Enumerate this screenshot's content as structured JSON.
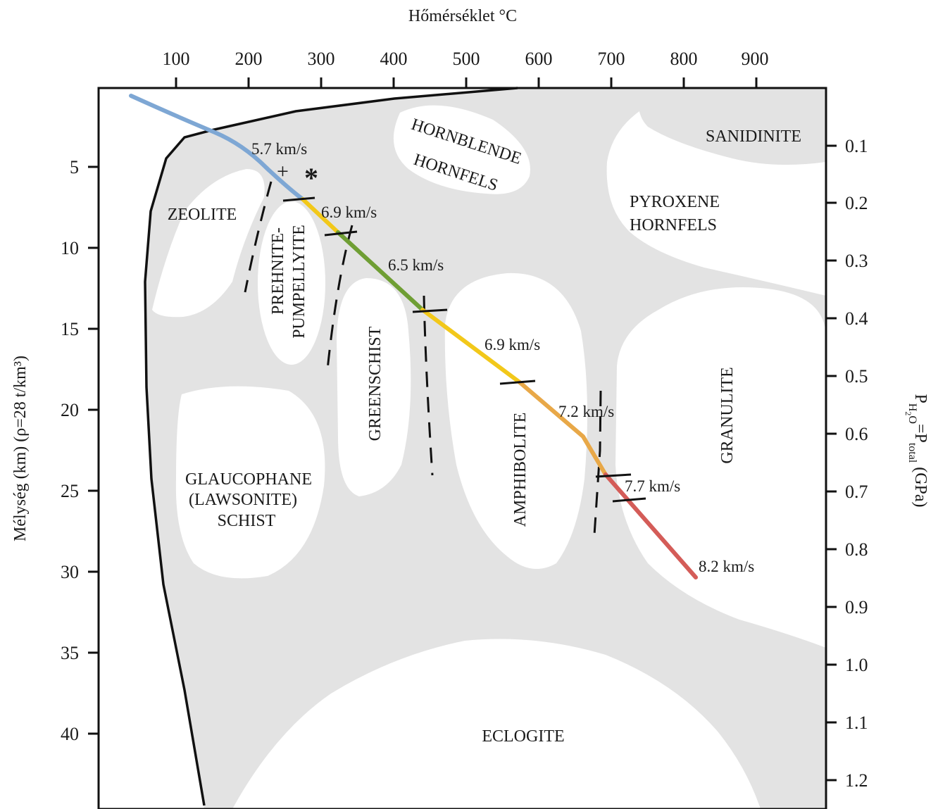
{
  "axes": {
    "top_title": "Hőmérséklet °C",
    "left_title": "Mélység (km) (ρ=28 t/km³)",
    "right_title": {
      "main": "P",
      "sub1": "H",
      "sub2": "2",
      "sub3": "O",
      "eq": "=P",
      "sub4": "total",
      "unit": "(GPa)"
    },
    "temperature_ticks": [
      "100",
      "200",
      "300",
      "400",
      "500",
      "600",
      "700",
      "800",
      "900"
    ],
    "depth_ticks": [
      "5",
      "10",
      "15",
      "20",
      "25",
      "30",
      "35",
      "40"
    ],
    "pressure_ticks": [
      "0.1",
      "0.2",
      "0.3",
      "0.4",
      "0.5",
      "0.6",
      "0.7",
      "0.8",
      "0.9",
      "1.0",
      "1.1",
      "1.2"
    ]
  },
  "facies": {
    "sanidinite": "SANIDINITE",
    "hornblende_1": "HORNBLENDE",
    "hornblende_2": "HORNFELS",
    "zeolite": "ZEOLITE",
    "pyroxene_1": "PYROXENE",
    "pyroxene_2": "HORNFELS",
    "prehnite_1": "PREHNITE-",
    "prehnite_2": "PUMPELLYITE",
    "greenschist": "GREENSCHIST",
    "amphibolite": "AMPHIBOLITE",
    "granulite": "GRANULITE",
    "glauco_1": "GLAUCOPHANE",
    "glauco_2": "(LAWSONITE)",
    "glauco_3": "SCHIST",
    "eclogite": "ECLOGITE"
  },
  "velocities": {
    "v1": "5.7 km/s",
    "v2": "6.9 km/s",
    "v3": "6.5 km/s",
    "v4": "6.9 km/s",
    "v5": "7.2 km/s",
    "v6": "7.7 km/s",
    "v7": "8.2 km/s"
  },
  "markers": {
    "plus": "+",
    "star": "*"
  },
  "colors": {
    "facies_field": "#e3e3e3",
    "geotherm_blue": "#7ea7d4",
    "geotherm_yellow": "#f2c81a",
    "geotherm_green": "#6f9e34",
    "geotherm_orange": "#e8a848",
    "geotherm_red": "#d45c58"
  }
}
